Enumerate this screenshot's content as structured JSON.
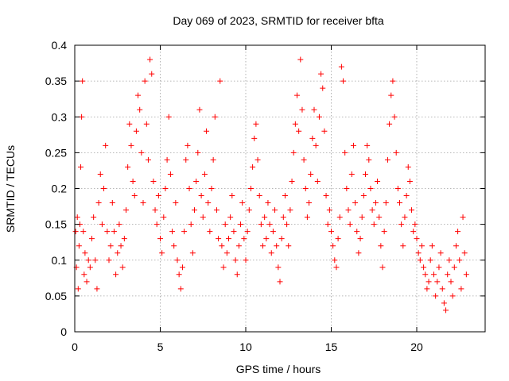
{
  "chart_data": {
    "type": "scatter",
    "title": "Day 069 of 2023, SRMTID for receiver bfta",
    "xlabel": "GPS time / hours",
    "ylabel": "SRMTID / TECUs",
    "xlim": [
      0,
      24
    ],
    "ylim": [
      0,
      0.4
    ],
    "xticks": [
      0,
      5,
      10,
      15,
      20
    ],
    "xtick_labels": [
      "0",
      "5",
      "10",
      "15",
      "20"
    ],
    "yticks": [
      0,
      0.05,
      0.1,
      0.15,
      0.2,
      0.25,
      0.3,
      0.35,
      0.4
    ],
    "ytick_labels": [
      "0",
      "0.05",
      "0.1",
      "0.15",
      "0.2",
      "0.25",
      "0.3",
      "0.35",
      "0.4"
    ],
    "grid": true,
    "marker": "+",
    "color": "#ff0000",
    "series": [
      {
        "points": [
          [
            0.05,
            0.14
          ],
          [
            0.1,
            0.09
          ],
          [
            0.15,
            0.16
          ],
          [
            0.2,
            0.06
          ],
          [
            0.25,
            0.12
          ],
          [
            0.3,
            0.15
          ],
          [
            0.35,
            0.23
          ],
          [
            0.4,
            0.3
          ],
          [
            0.45,
            0.35
          ],
          [
            0.5,
            0.14
          ],
          [
            0.55,
            0.08
          ],
          [
            0.6,
            0.11
          ],
          [
            0.7,
            0.07
          ],
          [
            0.8,
            0.1
          ],
          [
            0.9,
            0.09
          ],
          [
            1.0,
            0.13
          ],
          [
            1.1,
            0.16
          ],
          [
            1.2,
            0.1
          ],
          [
            1.3,
            0.06
          ],
          [
            1.4,
            0.18
          ],
          [
            1.5,
            0.22
          ],
          [
            1.6,
            0.15
          ],
          [
            1.7,
            0.2
          ],
          [
            1.8,
            0.26
          ],
          [
            1.9,
            0.14
          ],
          [
            2.0,
            0.1
          ],
          [
            2.1,
            0.12
          ],
          [
            2.2,
            0.18
          ],
          [
            2.3,
            0.14
          ],
          [
            2.4,
            0.08
          ],
          [
            2.5,
            0.11
          ],
          [
            2.6,
            0.15
          ],
          [
            2.7,
            0.12
          ],
          [
            2.8,
            0.09
          ],
          [
            2.9,
            0.13
          ],
          [
            3.0,
            0.17
          ],
          [
            3.1,
            0.23
          ],
          [
            3.2,
            0.29
          ],
          [
            3.3,
            0.26
          ],
          [
            3.4,
            0.21
          ],
          [
            3.5,
            0.19
          ],
          [
            3.6,
            0.28
          ],
          [
            3.7,
            0.33
          ],
          [
            3.8,
            0.31
          ],
          [
            3.9,
            0.25
          ],
          [
            4.0,
            0.18
          ],
          [
            4.1,
            0.35
          ],
          [
            4.2,
            0.29
          ],
          [
            4.3,
            0.24
          ],
          [
            4.4,
            0.38
          ],
          [
            4.5,
            0.36
          ],
          [
            4.6,
            0.21
          ],
          [
            4.7,
            0.17
          ],
          [
            4.8,
            0.15
          ],
          [
            4.9,
            0.19
          ],
          [
            5.0,
            0.13
          ],
          [
            5.1,
            0.11
          ],
          [
            5.2,
            0.16
          ],
          [
            5.3,
            0.2
          ],
          [
            5.4,
            0.24
          ],
          [
            5.5,
            0.3
          ],
          [
            5.6,
            0.22
          ],
          [
            5.7,
            0.14
          ],
          [
            5.8,
            0.12
          ],
          [
            5.9,
            0.18
          ],
          [
            6.0,
            0.1
          ],
          [
            6.1,
            0.08
          ],
          [
            6.2,
            0.06
          ],
          [
            6.3,
            0.09
          ],
          [
            6.4,
            0.14
          ],
          [
            6.5,
            0.24
          ],
          [
            6.6,
            0.26
          ],
          [
            6.7,
            0.2
          ],
          [
            6.8,
            0.15
          ],
          [
            6.9,
            0.11
          ],
          [
            7.0,
            0.17
          ],
          [
            7.1,
            0.21
          ],
          [
            7.2,
            0.25
          ],
          [
            7.3,
            0.31
          ],
          [
            7.4,
            0.19
          ],
          [
            7.5,
            0.16
          ],
          [
            7.6,
            0.22
          ],
          [
            7.7,
            0.28
          ],
          [
            7.8,
            0.18
          ],
          [
            7.9,
            0.14
          ],
          [
            8.0,
            0.2
          ],
          [
            8.1,
            0.24
          ],
          [
            8.2,
            0.3
          ],
          [
            8.3,
            0.17
          ],
          [
            8.4,
            0.13
          ],
          [
            8.5,
            0.35
          ],
          [
            8.6,
            0.12
          ],
          [
            8.7,
            0.09
          ],
          [
            8.8,
            0.15
          ],
          [
            8.9,
            0.11
          ],
          [
            9.0,
            0.13
          ],
          [
            9.1,
            0.16
          ],
          [
            9.2,
            0.19
          ],
          [
            9.3,
            0.14
          ],
          [
            9.4,
            0.1
          ],
          [
            9.5,
            0.08
          ],
          [
            9.6,
            0.12
          ],
          [
            9.7,
            0.15
          ],
          [
            9.8,
            0.18
          ],
          [
            9.9,
            0.13
          ],
          [
            10.0,
            0.1
          ],
          [
            10.1,
            0.14
          ],
          [
            10.2,
            0.17
          ],
          [
            10.3,
            0.2
          ],
          [
            10.4,
            0.23
          ],
          [
            10.5,
            0.27
          ],
          [
            10.6,
            0.29
          ],
          [
            10.7,
            0.24
          ],
          [
            10.8,
            0.19
          ],
          [
            10.9,
            0.15
          ],
          [
            11.0,
            0.12
          ],
          [
            11.1,
            0.16
          ],
          [
            11.2,
            0.13
          ],
          [
            11.3,
            0.18
          ],
          [
            11.4,
            0.15
          ],
          [
            11.5,
            0.11
          ],
          [
            11.6,
            0.14
          ],
          [
            11.7,
            0.17
          ],
          [
            11.8,
            0.12
          ],
          [
            11.9,
            0.09
          ],
          [
            12.0,
            0.07
          ],
          [
            12.1,
            0.13
          ],
          [
            12.2,
            0.16
          ],
          [
            12.3,
            0.19
          ],
          [
            12.4,
            0.15
          ],
          [
            12.5,
            0.12
          ],
          [
            12.6,
            0.17
          ],
          [
            12.7,
            0.21
          ],
          [
            12.8,
            0.25
          ],
          [
            12.9,
            0.29
          ],
          [
            13.0,
            0.33
          ],
          [
            13.1,
            0.28
          ],
          [
            13.2,
            0.38
          ],
          [
            13.3,
            0.31
          ],
          [
            13.4,
            0.24
          ],
          [
            13.5,
            0.2
          ],
          [
            13.6,
            0.16
          ],
          [
            13.7,
            0.18
          ],
          [
            13.8,
            0.22
          ],
          [
            13.9,
            0.27
          ],
          [
            14.0,
            0.31
          ],
          [
            14.1,
            0.26
          ],
          [
            14.2,
            0.21
          ],
          [
            14.3,
            0.3
          ],
          [
            14.4,
            0.36
          ],
          [
            14.5,
            0.34
          ],
          [
            14.6,
            0.28
          ],
          [
            14.7,
            0.19
          ],
          [
            14.8,
            0.15
          ],
          [
            14.9,
            0.17
          ],
          [
            15.0,
            0.14
          ],
          [
            15.1,
            0.12
          ],
          [
            15.2,
            0.1
          ],
          [
            15.3,
            0.09
          ],
          [
            15.4,
            0.13
          ],
          [
            15.5,
            0.16
          ],
          [
            15.6,
            0.37
          ],
          [
            15.7,
            0.35
          ],
          [
            15.8,
            0.25
          ],
          [
            15.9,
            0.2
          ],
          [
            16.0,
            0.17
          ],
          [
            16.1,
            0.15
          ],
          [
            16.2,
            0.22
          ],
          [
            16.3,
            0.26
          ],
          [
            16.4,
            0.18
          ],
          [
            16.5,
            0.14
          ],
          [
            16.6,
            0.11
          ],
          [
            16.7,
            0.13
          ],
          [
            16.8,
            0.16
          ],
          [
            16.9,
            0.19
          ],
          [
            17.0,
            0.22
          ],
          [
            17.1,
            0.26
          ],
          [
            17.2,
            0.24
          ],
          [
            17.3,
            0.2
          ],
          [
            17.4,
            0.17
          ],
          [
            17.5,
            0.15
          ],
          [
            17.6,
            0.18
          ],
          [
            17.7,
            0.21
          ],
          [
            17.8,
            0.16
          ],
          [
            17.9,
            0.12
          ],
          [
            18.0,
            0.09
          ],
          [
            18.1,
            0.14
          ],
          [
            18.2,
            0.18
          ],
          [
            18.3,
            0.24
          ],
          [
            18.4,
            0.29
          ],
          [
            18.5,
            0.33
          ],
          [
            18.6,
            0.35
          ],
          [
            18.7,
            0.3
          ],
          [
            18.8,
            0.25
          ],
          [
            18.9,
            0.2
          ],
          [
            19.0,
            0.18
          ],
          [
            19.1,
            0.15
          ],
          [
            19.2,
            0.12
          ],
          [
            19.3,
            0.16
          ],
          [
            19.4,
            0.19
          ],
          [
            19.5,
            0.23
          ],
          [
            19.6,
            0.21
          ],
          [
            19.7,
            0.17
          ],
          [
            19.8,
            0.14
          ],
          [
            19.9,
            0.15
          ],
          [
            20.0,
            0.13
          ],
          [
            20.1,
            0.11
          ],
          [
            20.2,
            0.1
          ],
          [
            20.3,
            0.12
          ],
          [
            20.4,
            0.09
          ],
          [
            20.5,
            0.08
          ],
          [
            20.6,
            0.06
          ],
          [
            20.7,
            0.07
          ],
          [
            20.8,
            0.1
          ],
          [
            20.9,
            0.12
          ],
          [
            21.0,
            0.08
          ],
          [
            21.1,
            0.05
          ],
          [
            21.2,
            0.07
          ],
          [
            21.3,
            0.09
          ],
          [
            21.4,
            0.11
          ],
          [
            21.5,
            0.06
          ],
          [
            21.6,
            0.04
          ],
          [
            21.7,
            0.03
          ],
          [
            21.8,
            0.08
          ],
          [
            21.9,
            0.1
          ],
          [
            22.0,
            0.07
          ],
          [
            22.1,
            0.05
          ],
          [
            22.2,
            0.09
          ],
          [
            22.3,
            0.12
          ],
          [
            22.4,
            0.14
          ],
          [
            22.5,
            0.1
          ],
          [
            22.6,
            0.06
          ],
          [
            22.7,
            0.16
          ],
          [
            22.8,
            0.11
          ],
          [
            22.9,
            0.08
          ]
        ]
      }
    ]
  }
}
